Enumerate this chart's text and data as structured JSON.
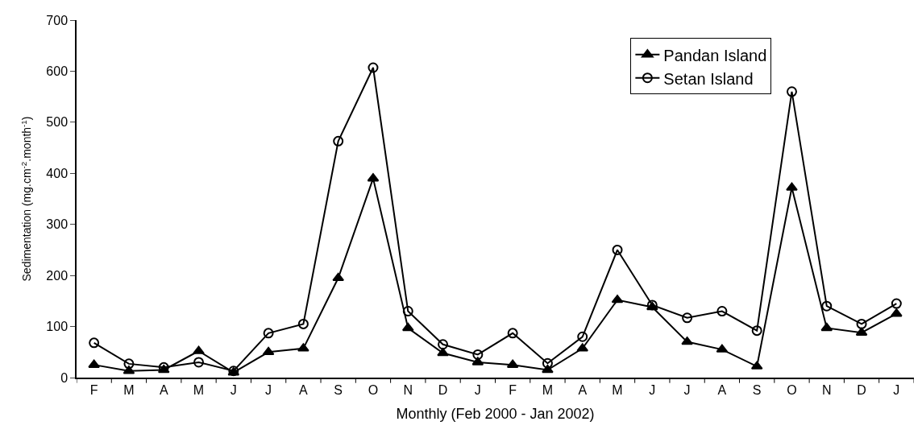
{
  "chart_data": {
    "type": "line",
    "xlabel": "Monthly (Feb 2000 - Jan 2002)",
    "ylabel": "Sedimentation (mg.cm$^{-2}$.month$^{-1}$)",
    "categories": [
      "F",
      "M",
      "A",
      "M",
      "J",
      "J",
      "A",
      "S",
      "O",
      "N",
      "D",
      "J",
      "F",
      "M",
      "A",
      "M",
      "J",
      "J",
      "A",
      "S",
      "O",
      "N",
      "D",
      "J"
    ],
    "series": [
      {
        "name": "Pandan Island",
        "color": "#000000",
        "marker": "triangle",
        "values": [
          25,
          13,
          15,
          52,
          10,
          50,
          57,
          195,
          390,
          97,
          48,
          30,
          25,
          15,
          57,
          152,
          138,
          70,
          55,
          22,
          372,
          97,
          88,
          125
        ]
      },
      {
        "name": "Setan Island",
        "color": "#000000",
        "marker": "circle",
        "values": [
          68,
          27,
          20,
          30,
          13,
          87,
          105,
          463,
          607,
          130,
          65,
          45,
          87,
          28,
          80,
          250,
          142,
          117,
          130,
          92,
          560,
          140,
          105,
          145
        ]
      }
    ],
    "ylim": [
      0,
      700
    ],
    "yticks": [
      0,
      100,
      200,
      300,
      400,
      500,
      600,
      700
    ],
    "grid": false,
    "legend": "top right",
    "line_style": "solid"
  }
}
